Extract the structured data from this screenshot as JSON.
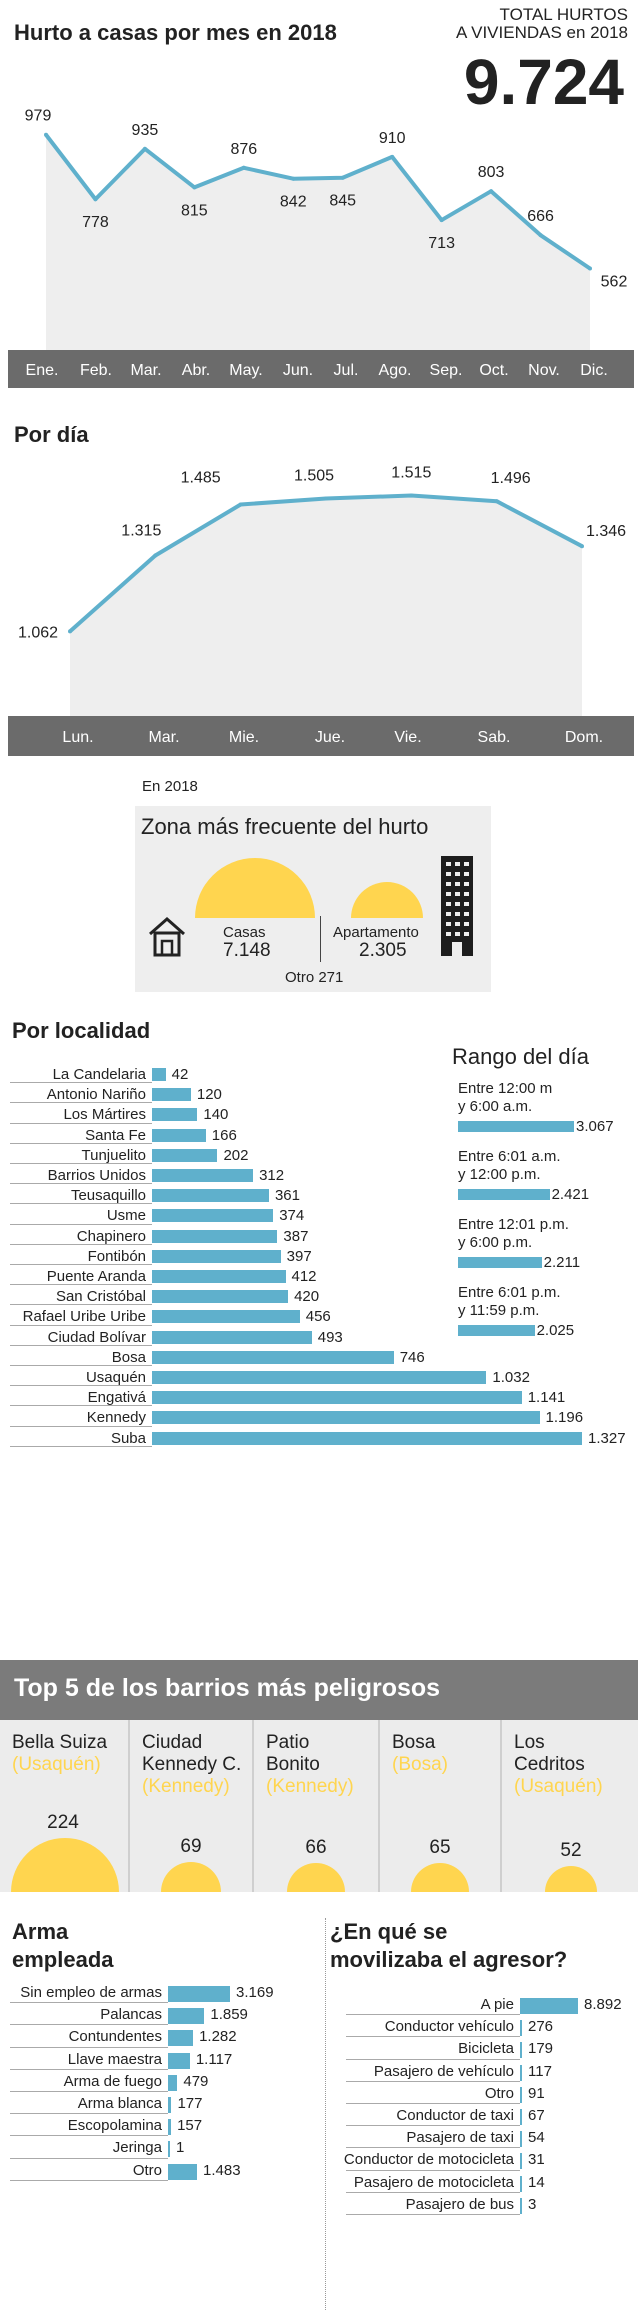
{
  "monthly": {
    "title": "Hurto a casas por mes en 2018",
    "total_label": "TOTAL HURTOS\nA VIVIENDAS en 2018",
    "total_line1": "TOTAL HURTOS",
    "total_line2": "A VIVIENDAS en 2018",
    "total_value": "9.724"
  },
  "daily": {
    "title": "Por día"
  },
  "zone": {
    "year_label": "En 2018",
    "title": "Zona más frecuente del hurto",
    "casas_label": "Casas",
    "casas_value": "7.148",
    "apto_label": "Apartamento",
    "apto_value": "2.305",
    "other": "Otro 271",
    "accent": "#ffd54f"
  },
  "localidad": {
    "title": "Por localidad"
  },
  "rango": {
    "title": "Rango del día",
    "items": [
      {
        "line1": "Entre 12:00 m",
        "line2": "y 6:00 a.m.",
        "value": "3.067"
      },
      {
        "line1": "Entre 6:01 a.m.",
        "line2": "y 12:00 p.m.",
        "value": "2.421"
      },
      {
        "line1": "Entre 12:01 p.m.",
        "line2": "y 6:00 p.m.",
        "value": "2.211"
      },
      {
        "line1": "Entre 6:01 p.m.",
        "line2": "y 11:59 p.m.",
        "value": "2.025"
      }
    ]
  },
  "top5": {
    "title": "Top 5 de los barrios más peligrosos",
    "items": [
      {
        "name": "Bella Suiza",
        "loc": "(Usaquén)",
        "value": "224"
      },
      {
        "name": "Ciudad\nKennedy C.",
        "loc": "(Kennedy)",
        "value": "69"
      },
      {
        "name": "Patio\nBonito",
        "loc": "(Kennedy)",
        "value": "66"
      },
      {
        "name": "Bosa",
        "loc": "(Bosa)",
        "value": "65"
      },
      {
        "name": "Los\nCedritos",
        "loc": "(Usaquén)",
        "value": "52"
      }
    ]
  },
  "arma": {
    "title_line1": "Arma",
    "title_line2": "empleada"
  },
  "agresor": {
    "title_line1": "¿En qué se",
    "title_line2": "movilizaba el agresor?"
  },
  "colors": {
    "line": "#5fb0cc",
    "bar": "#5fb0cc",
    "axis_band": "#6b6b6b",
    "top5_bg": "#7b7b7b",
    "yellow": "#ffd54f"
  },
  "chart_data": [
    {
      "type": "line",
      "title": "Hurto a casas por mes en 2018",
      "categories": [
        "Ene.",
        "Feb.",
        "Mar.",
        "Abr.",
        "May.",
        "Jun.",
        "Jul.",
        "Ago.",
        "Sep.",
        "Oct.",
        "Nov.",
        "Dic."
      ],
      "values": [
        979,
        778,
        935,
        815,
        876,
        842,
        845,
        910,
        713,
        803,
        666,
        562
      ],
      "labels": [
        "979",
        "778",
        "935",
        "815",
        "876",
        "842",
        "845",
        "910",
        "713",
        "803",
        "666",
        "562"
      ],
      "ylim": [
        520,
        1000
      ]
    },
    {
      "type": "line",
      "title": "Por día",
      "categories": [
        "Lun.",
        "Mar.",
        "Mie.",
        "Jue.",
        "Vie.",
        "Sab.",
        "Dom."
      ],
      "values": [
        1062,
        1315,
        1485,
        1505,
        1515,
        1496,
        1346
      ],
      "labels": [
        "1.062",
        "1.315",
        "1.485",
        "1.505",
        "1.515",
        "1.496",
        "1.346"
      ],
      "ylim": [
        1000,
        1540
      ]
    },
    {
      "type": "bar",
      "title": "Por localidad",
      "categories": [
        "La Candelaria",
        "Antonio Nariño",
        "Los Mártires",
        "Santa Fe",
        "Tunjuelito",
        "Barrios Unidos",
        "Teusaquillo",
        "Usme",
        "Chapinero",
        "Fontibón",
        "Puente Aranda",
        "San Cristóbal",
        "Rafael Uribe Uribe",
        "Ciudad Bolívar",
        "Bosa",
        "Usaquén",
        "Engativá",
        "Kennedy",
        "Suba"
      ],
      "values": [
        42,
        120,
        140,
        166,
        202,
        312,
        361,
        374,
        387,
        397,
        412,
        420,
        456,
        493,
        746,
        1032,
        1141,
        1196,
        1327
      ],
      "labels": [
        "42",
        "120",
        "140",
        "166",
        "202",
        "312",
        "361",
        "374",
        "387",
        "397",
        "412",
        "420",
        "456",
        "493",
        "746",
        "1.032",
        "1.141",
        "1.196",
        "1.327"
      ]
    },
    {
      "type": "bar",
      "title": "Rango del día",
      "categories": [
        "Entre 12:00 m y 6:00 a.m.",
        "Entre 6:01 a.m. y 12:00 p.m.",
        "Entre 12:01 p.m. y 6:00 p.m.",
        "Entre 6:01 p.m. y 11:59 p.m."
      ],
      "values": [
        3067,
        2421,
        2211,
        2025
      ]
    },
    {
      "type": "bar",
      "title": "Top 5 de los barrios más peligrosos",
      "categories": [
        "Bella Suiza",
        "Ciudad Kennedy C.",
        "Patio Bonito",
        "Bosa",
        "Los Cedritos"
      ],
      "values": [
        224,
        69,
        66,
        65,
        52
      ]
    },
    {
      "type": "bar",
      "title": "Arma empleada",
      "categories": [
        "Sin empleo de armas",
        "Palancas",
        "Contundentes",
        "Llave maestra",
        "Arma de fuego",
        "Arma blanca",
        "Escopolamina",
        "Jeringa",
        "Otro"
      ],
      "values": [
        3169,
        1859,
        1282,
        1117,
        479,
        177,
        157,
        1,
        1483
      ],
      "labels": [
        "3.169",
        "1.859",
        "1.282",
        "1.117",
        "479",
        "177",
        "157",
        "1",
        "1.483"
      ]
    },
    {
      "type": "bar",
      "title": "¿En qué se movilizaba el agresor?",
      "categories": [
        "A pie",
        "Conductor vehículo",
        "Bicicleta",
        "Pasajero de vehículo",
        "Otro",
        "Conductor de taxi",
        "Pasajero de taxi",
        "Conductor de motocicleta",
        "Pasajero de motocicleta",
        "Pasajero de bus"
      ],
      "values": [
        8892,
        276,
        179,
        117,
        91,
        67,
        54,
        31,
        14,
        3
      ],
      "labels": [
        "8.892",
        "276",
        "179",
        "117",
        "91",
        "67",
        "54",
        "31",
        "14",
        "3"
      ]
    }
  ]
}
